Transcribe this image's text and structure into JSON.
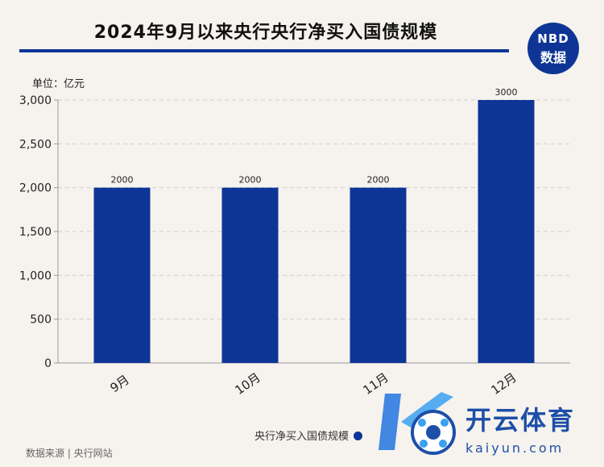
{
  "header": {
    "title": "2024年9月以来央行央行净买入国债规模",
    "logo_top": "NBD",
    "logo_bottom": "数据"
  },
  "unit_label": "单位：亿元",
  "source": "数据来源 | 央行网站",
  "watermark": {
    "cn": "开云体育",
    "en": "kaiyun.com"
  },
  "colors": {
    "bar": "#0e3596",
    "background": "#f6f3ee",
    "grid": "#cfcfcf"
  },
  "chart_data": {
    "type": "bar",
    "title": "2024年9月以来央行央行净买入国债规模",
    "categories": [
      "9月",
      "10月",
      "11月",
      "12月"
    ],
    "series": [
      {
        "name": "央行净买入国债规模",
        "values": [
          2000,
          2000,
          2000,
          3000
        ]
      }
    ],
    "data_labels": [
      "2000",
      "2000",
      "2000",
      "3000"
    ],
    "y_ticks": [
      0,
      500,
      1000,
      1500,
      2000,
      2500,
      3000
    ],
    "y_tick_labels": [
      "0",
      "500",
      "1,000",
      "1,500",
      "2,000",
      "2,500",
      "3,000"
    ],
    "ylim": [
      0,
      3000
    ],
    "ylabel": "单位：亿元",
    "xlabel": "",
    "grid": true,
    "legend": "bottom-right"
  },
  "legend_label": "央行净买入国债规模"
}
